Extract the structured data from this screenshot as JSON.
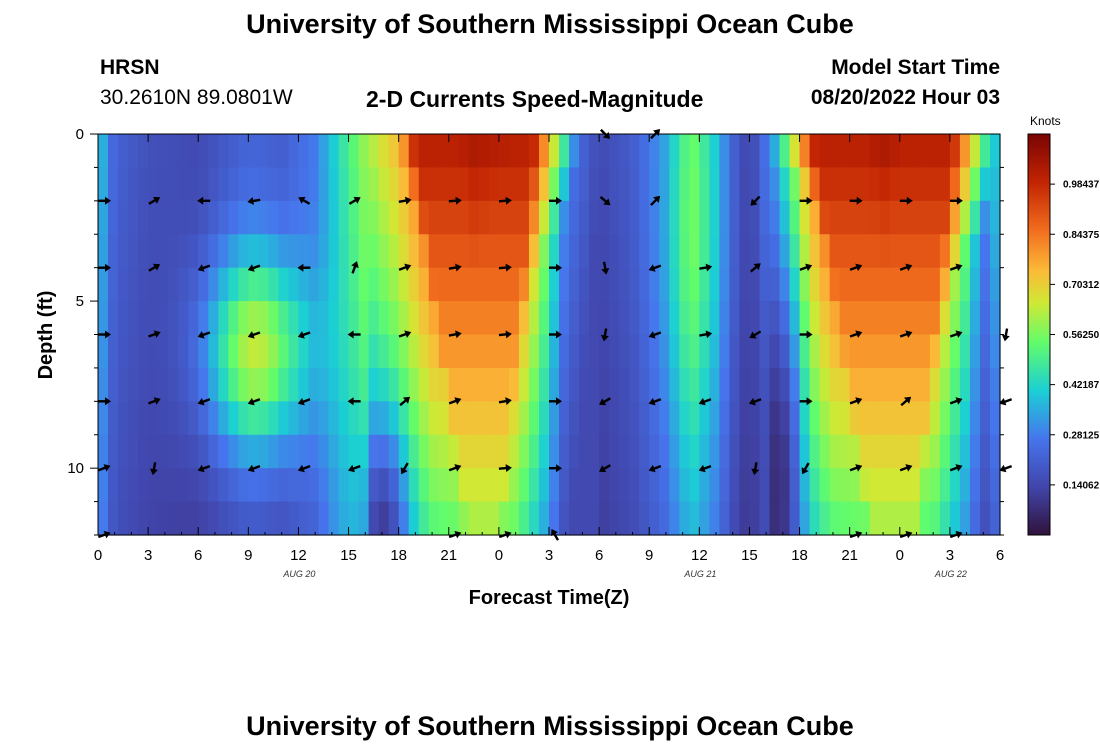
{
  "header": {
    "title": "University of Southern Mississippi Ocean Cube",
    "station": "HRSN",
    "coordinates": "30.2610N  89.0801W",
    "chart_title": "2-D Currents Speed-Magnitude",
    "model_label": "Model Start Time",
    "model_time": "08/20/2022 Hour 03"
  },
  "footer": {
    "title": "University of Southern Mississippi Ocean Cube"
  },
  "chart_data": {
    "type": "heatmap",
    "title": "2-D Currents Speed-Magnitude",
    "xlabel": "Forecast Time(Z)",
    "ylabel": "Depth (ft)",
    "x_hours_range": [
      0,
      54
    ],
    "ylim": [
      0,
      12
    ],
    "x_ticks": [
      {
        "hour": 0,
        "label": "0"
      },
      {
        "hour": 3,
        "label": "3"
      },
      {
        "hour": 6,
        "label": "6"
      },
      {
        "hour": 9,
        "label": "9"
      },
      {
        "hour": 12,
        "label": "12"
      },
      {
        "hour": 15,
        "label": "15"
      },
      {
        "hour": 18,
        "label": "18"
      },
      {
        "hour": 21,
        "label": "21"
      },
      {
        "hour": 24,
        "label": "0"
      },
      {
        "hour": 27,
        "label": "3"
      },
      {
        "hour": 30,
        "label": "6"
      },
      {
        "hour": 33,
        "label": "9"
      },
      {
        "hour": 36,
        "label": "12"
      },
      {
        "hour": 39,
        "label": "15"
      },
      {
        "hour": 42,
        "label": "18"
      },
      {
        "hour": 45,
        "label": "21"
      },
      {
        "hour": 48,
        "label": "0"
      },
      {
        "hour": 51,
        "label": "3"
      },
      {
        "hour": 54,
        "label": "6"
      }
    ],
    "y_ticks": [
      {
        "value": 0,
        "label": "0"
      },
      {
        "value": 5,
        "label": "5"
      },
      {
        "value": 10,
        "label": "10"
      }
    ],
    "date_labels": [
      {
        "hour": 12,
        "label": "AUG 20"
      },
      {
        "hour": 36,
        "label": "AUG 21"
      },
      {
        "hour": 51,
        "label": "AUG 22"
      }
    ],
    "colorbar": {
      "label": "Knots",
      "min": 0,
      "max": 1.125,
      "ticks": [
        "0.98437",
        "0.84375",
        "0.70312",
        "0.56250",
        "0.42187",
        "0.28125",
        "0.14062"
      ],
      "tick_values": [
        0.98437,
        0.84375,
        0.70312,
        0.5625,
        0.42187,
        0.28125,
        0.14062
      ]
    },
    "depths": [
      0,
      1,
      2,
      3,
      4,
      5,
      6,
      7,
      8,
      9,
      10,
      11,
      12
    ],
    "surface_profile_knots": [
      {
        "hour": 0,
        "v": 0.42
      },
      {
        "hour": 1,
        "v": 0.22
      },
      {
        "hour": 3,
        "v": 0.17
      },
      {
        "hour": 6,
        "v": 0.15
      },
      {
        "hour": 9,
        "v": 0.22
      },
      {
        "hour": 11,
        "v": 0.2
      },
      {
        "hour": 13,
        "v": 0.28
      },
      {
        "hour": 14.5,
        "v": 0.45
      },
      {
        "hour": 16,
        "v": 0.6
      },
      {
        "hour": 18,
        "v": 0.75
      },
      {
        "hour": 20,
        "v": 0.98
      },
      {
        "hour": 22.5,
        "v": 1.05
      },
      {
        "hour": 25,
        "v": 1.02
      },
      {
        "hour": 26.5,
        "v": 0.72
      },
      {
        "hour": 28,
        "v": 0.3
      },
      {
        "hour": 30,
        "v": 0.15
      },
      {
        "hour": 32,
        "v": 0.2
      },
      {
        "hour": 34,
        "v": 0.3
      },
      {
        "hour": 35.5,
        "v": 0.48
      },
      {
        "hour": 37,
        "v": 0.35
      },
      {
        "hour": 38,
        "v": 0.2
      },
      {
        "hour": 39,
        "v": 0.12
      },
      {
        "hour": 40.5,
        "v": 0.35
      },
      {
        "hour": 42.5,
        "v": 0.8
      },
      {
        "hour": 44,
        "v": 0.98
      },
      {
        "hour": 47,
        "v": 1.05
      },
      {
        "hour": 50,
        "v": 0.98
      },
      {
        "hour": 52,
        "v": 0.6
      },
      {
        "hour": 53,
        "v": 0.3
      },
      {
        "hour": 54,
        "v": 0.45
      }
    ],
    "arrow_hours": [
      0,
      3,
      6,
      9,
      12,
      15,
      18,
      21,
      24,
      27,
      30,
      33,
      36,
      39,
      42,
      45,
      48,
      51,
      54
    ],
    "arrow_depths": [
      0,
      2,
      4,
      6,
      8,
      10,
      12
    ],
    "arrow_directions_deg": {
      "0": [
        null,
        null,
        null,
        null,
        null,
        null,
        null,
        null,
        null,
        null,
        -45,
        45,
        null,
        null,
        null,
        null,
        null,
        null,
        null
      ],
      "2": [
        0,
        30,
        180,
        190,
        150,
        30,
        10,
        5,
        5,
        0,
        -40,
        45,
        null,
        225,
        0,
        0,
        0,
        0,
        null
      ],
      "4": [
        0,
        30,
        200,
        200,
        180,
        70,
        20,
        10,
        5,
        0,
        -80,
        200,
        10,
        40,
        20,
        20,
        20,
        20,
        null
      ],
      "6": [
        0,
        20,
        200,
        200,
        200,
        180,
        20,
        10,
        5,
        0,
        260,
        200,
        10,
        210,
        0,
        20,
        20,
        20,
        260
      ],
      "8": [
        0,
        20,
        200,
        200,
        200,
        180,
        40,
        20,
        10,
        0,
        210,
        200,
        200,
        200,
        0,
        20,
        40,
        20,
        200
      ],
      "10": [
        20,
        260,
        200,
        200,
        200,
        200,
        240,
        20,
        5,
        0,
        210,
        200,
        200,
        260,
        240,
        20,
        20,
        20,
        200
      ],
      "12": [
        20,
        null,
        null,
        null,
        null,
        null,
        null,
        20,
        20,
        120,
        null,
        null,
        null,
        null,
        null,
        20,
        20,
        20,
        null
      ]
    }
  }
}
